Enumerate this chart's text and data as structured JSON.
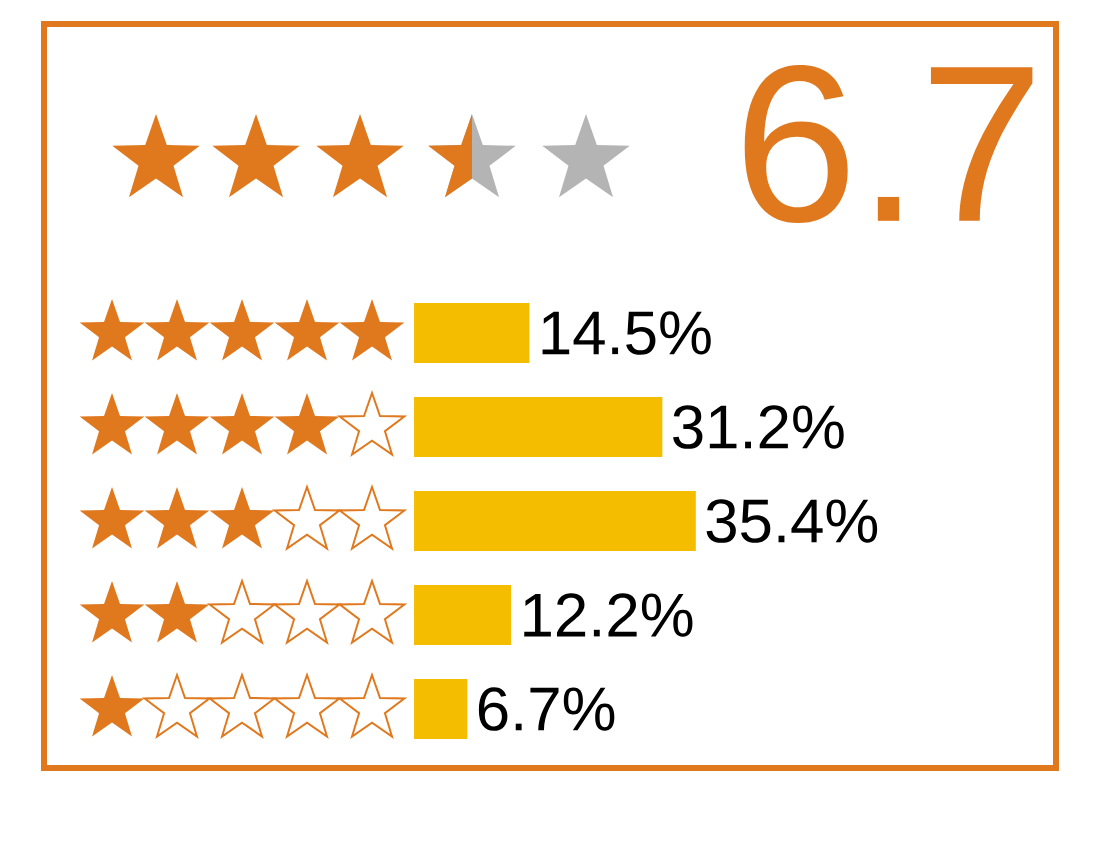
{
  "chart_data": {
    "type": "bar",
    "orientation": "horizontal",
    "categories": [
      null,
      null,
      null,
      null,
      null
    ],
    "values": [
      14.5,
      31.2,
      35.4,
      12.2,
      6.7
    ],
    "value_labels": [
      "14.5%",
      "31.2%",
      "35.4%",
      "12.2%",
      "6.7%"
    ],
    "color": "#f5bd00",
    "annotations": [
      "6.7"
    ]
  }
}
